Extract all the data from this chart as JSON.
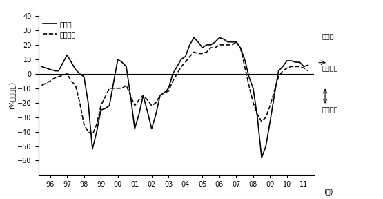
{
  "ylabel": "(%ポイント)",
  "xlabel": "(年)",
  "ylim": [
    -70,
    40
  ],
  "yticks": [
    -60,
    -50,
    -40,
    -30,
    -20,
    -10,
    0,
    10,
    20,
    30,
    40
  ],
  "background_color": "#ffffff",
  "line_color_manufacturing": "#000000",
  "line_color_nonmanufacturing": "#000000",
  "legend_manufacturing": "製造業",
  "legend_nonmanufacturing": "非製造業",
  "annotation_senkoki": "先行き",
  "annotation_yoi": "「良い」",
  "annotation_warui": "「悪い」",
  "x_labels": [
    "96",
    "97",
    "98",
    "99",
    "00",
    "01",
    "02",
    "03",
    "04",
    "05",
    "06",
    "07",
    "08",
    "09",
    "10",
    "11"
  ],
  "manufacturing_x": [
    1995.5,
    1996.0,
    1996.3,
    1996.5,
    1997.0,
    1997.25,
    1997.5,
    1997.75,
    1998.0,
    1998.25,
    1998.5,
    1998.75,
    1999.0,
    1999.25,
    1999.5,
    2000.0,
    2000.25,
    2000.5,
    2000.75,
    2001.0,
    2001.25,
    2001.5,
    2001.75,
    2002.0,
    2002.25,
    2002.5,
    2002.75,
    2003.0,
    2003.25,
    2003.5,
    2003.75,
    2004.0,
    2004.25,
    2004.5,
    2004.75,
    2005.0,
    2005.25,
    2005.5,
    2005.75,
    2006.0,
    2006.25,
    2006.5,
    2006.75,
    2007.0,
    2007.25,
    2007.5,
    2007.75,
    2008.0,
    2008.25,
    2008.5,
    2008.75,
    2009.0,
    2009.25,
    2009.5,
    2009.75,
    2010.0,
    2010.25,
    2010.5,
    2010.75,
    2011.0,
    2011.25
  ],
  "manufacturing_y": [
    5,
    3,
    2,
    2,
    13,
    8,
    3,
    0,
    -2,
    -20,
    -52,
    -40,
    -25,
    -24,
    -22,
    10,
    8,
    5,
    -15,
    -38,
    -28,
    -15,
    -26,
    -38,
    -28,
    -15,
    -13,
    -10,
    0,
    5,
    10,
    12,
    20,
    25,
    22,
    18,
    20,
    20,
    22,
    25,
    24,
    22,
    22,
    22,
    18,
    10,
    -2,
    -10,
    -30,
    -58,
    -50,
    -33,
    -15,
    2,
    5,
    9,
    9,
    8,
    8,
    5,
    6
  ],
  "nonmanufacturing_x": [
    1995.5,
    1996.0,
    1996.25,
    1996.5,
    1997.0,
    1997.25,
    1997.5,
    1997.75,
    1998.0,
    1998.25,
    1998.5,
    1998.75,
    1999.0,
    1999.25,
    1999.5,
    2000.0,
    2000.25,
    2000.5,
    2000.75,
    2001.0,
    2001.25,
    2001.5,
    2001.75,
    2002.0,
    2002.25,
    2002.5,
    2002.75,
    2003.0,
    2003.25,
    2003.5,
    2003.75,
    2004.0,
    2004.25,
    2004.5,
    2004.75,
    2005.0,
    2005.25,
    2005.5,
    2005.75,
    2006.0,
    2006.25,
    2006.5,
    2006.75,
    2007.0,
    2007.25,
    2007.5,
    2007.75,
    2008.0,
    2008.25,
    2008.5,
    2008.75,
    2009.0,
    2009.25,
    2009.5,
    2009.75,
    2010.0,
    2010.25,
    2010.5,
    2010.75,
    2011.0,
    2011.25
  ],
  "nonmanufacturing_y": [
    -8,
    -5,
    -3,
    -2,
    0,
    -5,
    -8,
    -20,
    -35,
    -40,
    -42,
    -35,
    -22,
    -16,
    -10,
    -10,
    -10,
    -8,
    -15,
    -22,
    -18,
    -15,
    -18,
    -22,
    -20,
    -15,
    -13,
    -12,
    -5,
    0,
    5,
    8,
    12,
    15,
    14,
    14,
    15,
    18,
    18,
    20,
    20,
    20,
    20,
    22,
    18,
    5,
    -8,
    -20,
    -28,
    -33,
    -30,
    -22,
    -12,
    -2,
    2,
    4,
    5,
    5,
    5,
    4,
    2
  ]
}
